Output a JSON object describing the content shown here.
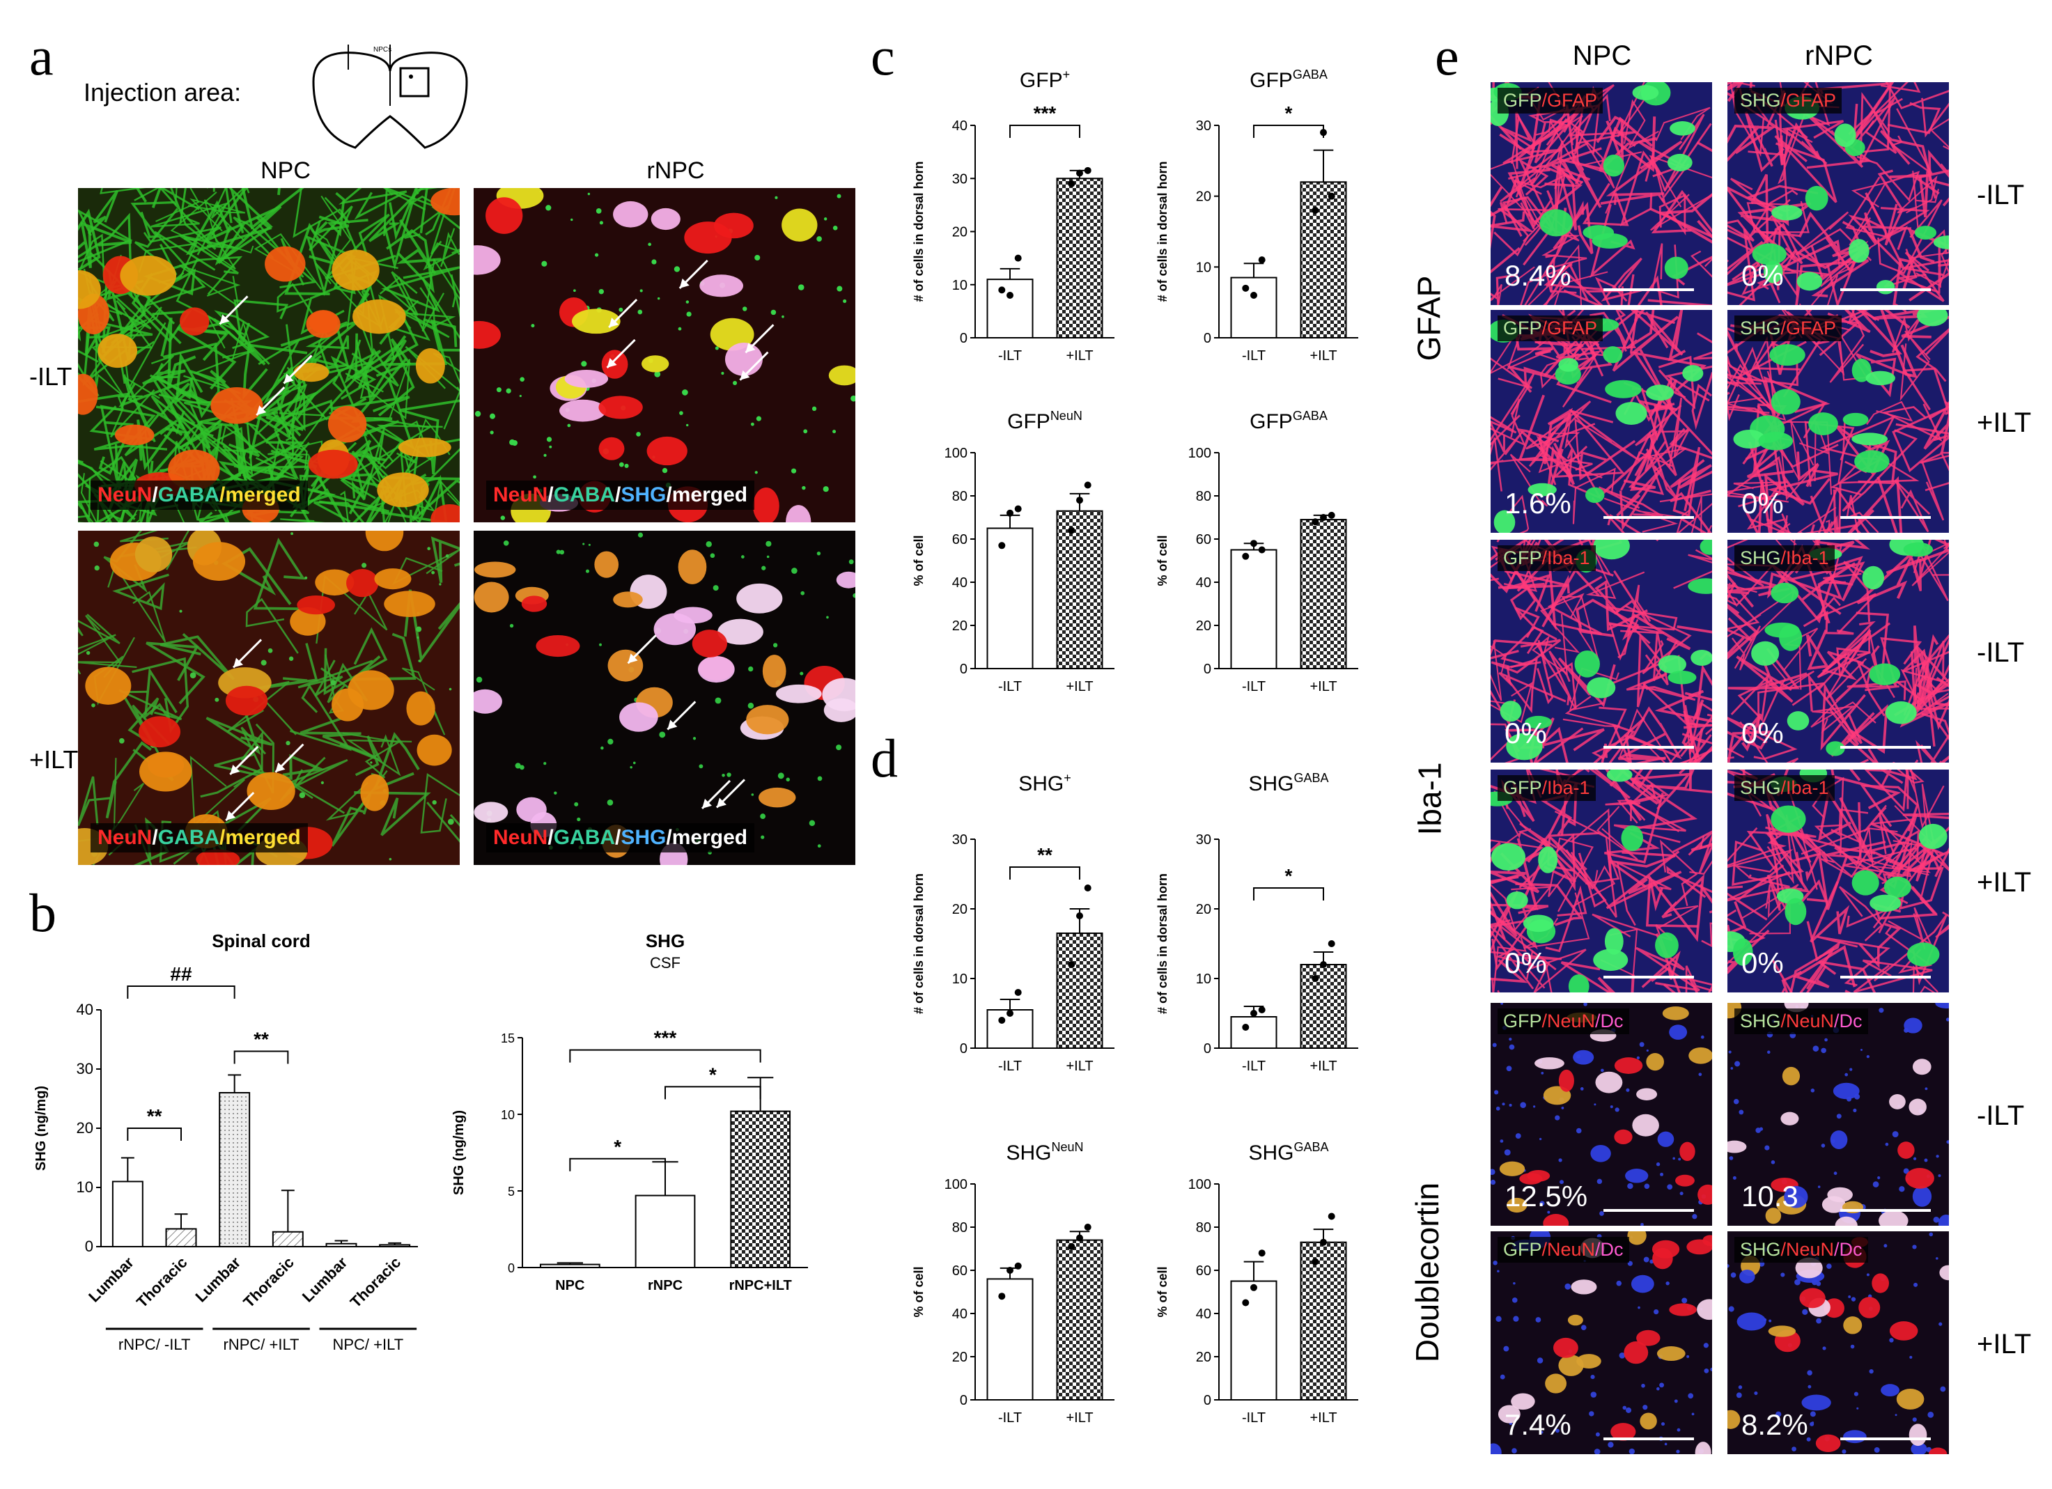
{
  "panels": {
    "a": "a",
    "b": "b",
    "c": "c",
    "d": "d",
    "e": "e"
  },
  "a": {
    "injection_label": "Injection area:",
    "diagram_label": "NPCs",
    "col_npc": "NPC",
    "col_rnpc": "rNPC",
    "row_minus": "-ILT",
    "row_plus": "+ILT",
    "cap_npc": [
      {
        "t": "NeuN",
        "c": "#ff2a2a"
      },
      {
        "t": "/",
        "c": "#ffffff"
      },
      {
        "t": "GABA",
        "c": "#38d3a0"
      },
      {
        "t": "/merged",
        "c": "#ffe033"
      }
    ],
    "cap_rnpc": [
      {
        "t": "NeuN",
        "c": "#ff2a2a"
      },
      {
        "t": "/",
        "c": "#ffffff"
      },
      {
        "t": "GABA",
        "c": "#38d3a0"
      },
      {
        "t": "/",
        "c": "#ffffff"
      },
      {
        "t": "SHG",
        "c": "#4fb3ff"
      },
      {
        "t": "/merged",
        "c": "#ffffff"
      }
    ]
  },
  "e": {
    "col_npc": "NPC",
    "col_rnpc": "rNPC",
    "groups": [
      "GFAP",
      "Iba-1",
      "Doublecortin"
    ],
    "rows": [
      {
        "side": "-ILT",
        "l": [
          {
            "t": "GFP",
            "c": "#b9e6a0"
          },
          {
            "t": "/GFAP",
            "c": "#ff3b3b"
          }
        ],
        "r": [
          {
            "t": "SHG",
            "c": "#b9e6a0"
          },
          {
            "t": "/GFAP",
            "c": "#ff3b3b"
          }
        ],
        "lp": "8.4%",
        "rp": "0%"
      },
      {
        "side": "+ILT",
        "l": [
          {
            "t": "GFP",
            "c": "#b9e6a0"
          },
          {
            "t": "/GFAP",
            "c": "#ff3b3b"
          }
        ],
        "r": [
          {
            "t": "SHG",
            "c": "#b9e6a0"
          },
          {
            "t": "/GFAP",
            "c": "#ff3b3b"
          }
        ],
        "lp": "1.6%",
        "rp": "0%"
      },
      {
        "side": "-ILT",
        "l": [
          {
            "t": "GFP",
            "c": "#b9e6a0"
          },
          {
            "t": "/Iba-1",
            "c": "#ff3b3b"
          }
        ],
        "r": [
          {
            "t": "SHG",
            "c": "#b9e6a0"
          },
          {
            "t": "/Iba-1",
            "c": "#ff3b3b"
          }
        ],
        "lp": "0%",
        "rp": "0%"
      },
      {
        "side": "+ILT",
        "l": [
          {
            "t": "GFP",
            "c": "#b9e6a0"
          },
          {
            "t": "/Iba-1",
            "c": "#ff3b3b"
          }
        ],
        "r": [
          {
            "t": "SHG",
            "c": "#b9e6a0"
          },
          {
            "t": "/Iba-1",
            "c": "#ff3b3b"
          }
        ],
        "lp": "0%",
        "rp": "0%"
      },
      {
        "side": "-ILT",
        "l": [
          {
            "t": "GFP",
            "c": "#b9e6a0"
          },
          {
            "t": "/NeuN",
            "c": "#ff3b3b"
          },
          {
            "t": "/Dc",
            "c": "#ff5ad0"
          }
        ],
        "r": [
          {
            "t": "SHG",
            "c": "#b9e6a0"
          },
          {
            "t": "/NeuN",
            "c": "#ff3b3b"
          },
          {
            "t": "/Dc",
            "c": "#ff5ad0"
          }
        ],
        "lp": "12.5%",
        "rp": "10.3"
      },
      {
        "side": "+ILT",
        "l": [
          {
            "t": "GFP",
            "c": "#b9e6a0"
          },
          {
            "t": "/NeuN",
            "c": "#ff3b3b"
          },
          {
            "t": "/Dc",
            "c": "#ff5ad0"
          }
        ],
        "r": [
          {
            "t": "SHG",
            "c": "#b9e6a0"
          },
          {
            "t": "/NeuN",
            "c": "#ff3b3b"
          },
          {
            "t": "/Dc",
            "c": "#ff5ad0"
          }
        ],
        "lp": "7.4%",
        "rp": "8.2%"
      }
    ]
  },
  "chart_data": [
    {
      "id": "b1",
      "type": "bar",
      "title": "Spinal cord",
      "subtitle": "",
      "ylabel": "SHG (ng/mg)",
      "ylim": [
        0,
        40
      ],
      "yticks": [
        0,
        10,
        20,
        30,
        40
      ],
      "categories": [
        "Lumbar",
        "Thoracic",
        "Lumbar",
        "Thoracic",
        "Lumbar",
        "Thoracic"
      ],
      "groups": [
        {
          "label": "rNPC/ -ILT",
          "span": [
            0,
            1
          ]
        },
        {
          "label": "rNPC/ +ILT",
          "span": [
            2,
            3
          ]
        },
        {
          "label": "NPC/ +ILT",
          "span": [
            4,
            5
          ]
        }
      ],
      "values": [
        11,
        3,
        26,
        2.5,
        0.5,
        0.3
      ],
      "errors": [
        4,
        2.5,
        3,
        7,
        0.5,
        0.3
      ],
      "fills": [
        "white",
        "hatch",
        "dots",
        "hatch",
        "white",
        "white"
      ],
      "significance": [
        {
          "a": 0,
          "b": 2,
          "label": "##",
          "y": 44
        },
        {
          "a": 0,
          "b": 1,
          "label": "**",
          "y": 20
        },
        {
          "a": 2,
          "b": 3,
          "label": "**",
          "y": 33
        }
      ]
    },
    {
      "id": "b2",
      "type": "bar",
      "title": "SHG",
      "subtitle": "CSF",
      "ylabel": "SHG (ng/mg)",
      "ylim": [
        0,
        15
      ],
      "yticks": [
        0,
        5,
        10,
        15
      ],
      "categories": [
        "NPC",
        "rNPC",
        "rNPC+ILT"
      ],
      "values": [
        0.2,
        4.7,
        10.2
      ],
      "errors": [
        0.1,
        2.2,
        2.2
      ],
      "fills": [
        "white",
        "white",
        "check"
      ],
      "significance": [
        {
          "a": 0,
          "b": 2,
          "label": "***",
          "y": 14.2
        },
        {
          "a": 1,
          "b": 2,
          "label": "*",
          "y": 11.8
        },
        {
          "a": 0,
          "b": 1,
          "label": "*",
          "y": 7.1
        }
      ]
    },
    {
      "id": "c1",
      "type": "bar",
      "title": "GFP",
      "title_sup": "+",
      "ylabel": "# of cells in dorsal horn",
      "ylim": [
        0,
        40
      ],
      "yticks": [
        0,
        10,
        20,
        30,
        40
      ],
      "categories": [
        "-ILT",
        "+ILT"
      ],
      "values": [
        11,
        30
      ],
      "errors": [
        2,
        1.5
      ],
      "fills": [
        "white",
        "check"
      ],
      "points": [
        [
          9,
          8,
          15
        ],
        [
          29,
          31,
          31.5
        ]
      ],
      "significance": [
        {
          "a": 0,
          "b": 1,
          "label": "***",
          "y": 40
        }
      ]
    },
    {
      "id": "c2",
      "type": "bar",
      "title": "GFP",
      "title_sup": "GABA",
      "ylabel": "# of cells in dorsal horn",
      "ylim": [
        0,
        30
      ],
      "yticks": [
        0,
        10,
        20,
        30
      ],
      "categories": [
        "-ILT",
        "+ILT"
      ],
      "values": [
        8.5,
        22
      ],
      "errors": [
        2,
        4.5
      ],
      "fills": [
        "white",
        "check"
      ],
      "points": [
        [
          7,
          6,
          11
        ],
        [
          18,
          29,
          20
        ]
      ],
      "significance": [
        {
          "a": 0,
          "b": 1,
          "label": "*",
          "y": 30
        }
      ]
    },
    {
      "id": "c3",
      "type": "bar",
      "title": "GFP",
      "title_sup": "NeuN",
      "ylabel": "% of cell",
      "ylim": [
        0,
        100
      ],
      "yticks": [
        0,
        20,
        40,
        60,
        80,
        100
      ],
      "categories": [
        "-ILT",
        "+ILT"
      ],
      "values": [
        65,
        73
      ],
      "errors": [
        6,
        8
      ],
      "fills": [
        "white",
        "check"
      ],
      "points": [
        [
          57,
          72,
          74
        ],
        [
          64,
          78,
          85
        ]
      ],
      "significance": []
    },
    {
      "id": "c4",
      "type": "bar",
      "title": "GFP",
      "title_sup": "GABA",
      "ylabel": "% of cell",
      "ylim": [
        0,
        100
      ],
      "yticks": [
        0,
        20,
        40,
        60,
        80,
        100
      ],
      "categories": [
        "-ILT",
        "+ILT"
      ],
      "values": [
        55,
        69
      ],
      "errors": [
        3,
        2
      ],
      "fills": [
        "white",
        "check"
      ],
      "points": [
        [
          52,
          58,
          55
        ],
        [
          68,
          70,
          71
        ]
      ],
      "significance": []
    },
    {
      "id": "d1",
      "type": "bar",
      "title": "SHG",
      "title_sup": "+",
      "ylabel": "# of cells in dorsal horn",
      "ylim": [
        0,
        30
      ],
      "yticks": [
        0,
        10,
        20,
        30
      ],
      "categories": [
        "-ILT",
        "+ILT"
      ],
      "values": [
        5.5,
        16.5
      ],
      "errors": [
        1.5,
        3.5
      ],
      "fills": [
        "white",
        "check"
      ],
      "points": [
        [
          4,
          5,
          8
        ],
        [
          12,
          19,
          23
        ]
      ],
      "significance": [
        {
          "a": 0,
          "b": 1,
          "label": "**",
          "y": 26
        }
      ]
    },
    {
      "id": "d2",
      "type": "bar",
      "title": "SHG",
      "title_sup": "GABA",
      "ylabel": "# of cells in dorsal horn",
      "ylim": [
        0,
        30
      ],
      "yticks": [
        0,
        10,
        20,
        30
      ],
      "categories": [
        "-ILT",
        "+ILT"
      ],
      "values": [
        4.5,
        12
      ],
      "errors": [
        1.5,
        1.8
      ],
      "fills": [
        "white",
        "check"
      ],
      "points": [
        [
          3,
          5,
          5.5
        ],
        [
          10,
          12,
          15
        ]
      ],
      "significance": [
        {
          "a": 0,
          "b": 1,
          "label": "*",
          "y": 23
        }
      ]
    },
    {
      "id": "d3",
      "type": "bar",
      "title": "SHG",
      "title_sup": "NeuN",
      "ylabel": "% of cell",
      "ylim": [
        0,
        100
      ],
      "yticks": [
        0,
        20,
        40,
        60,
        80,
        100
      ],
      "categories": [
        "-ILT",
        "+ILT"
      ],
      "values": [
        56,
        74
      ],
      "errors": [
        5,
        4
      ],
      "fills": [
        "white",
        "check"
      ],
      "points": [
        [
          48,
          60,
          62
        ],
        [
          71,
          75,
          80
        ]
      ],
      "significance": []
    },
    {
      "id": "d4",
      "type": "bar",
      "title": "SHG",
      "title_sup": "GABA",
      "ylabel": "% of cell",
      "ylim": [
        0,
        100
      ],
      "yticks": [
        0,
        20,
        40,
        60,
        80,
        100
      ],
      "categories": [
        "-ILT",
        "+ILT"
      ],
      "values": [
        55,
        73
      ],
      "errors": [
        9,
        6
      ],
      "fills": [
        "white",
        "check"
      ],
      "points": [
        [
          45,
          52,
          68
        ],
        [
          64,
          73,
          85
        ]
      ],
      "significance": []
    }
  ]
}
